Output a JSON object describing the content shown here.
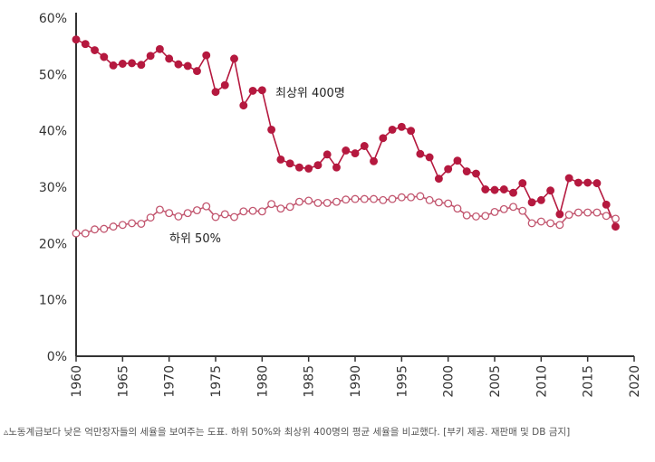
{
  "chart_data": {
    "type": "line",
    "title": "",
    "xlabel": "",
    "ylabel": "",
    "xlim": [
      1960,
      2020
    ],
    "ylim": [
      0,
      60
    ],
    "x_ticks": [
      "1960",
      "1965",
      "1970",
      "1975",
      "1980",
      "1985",
      "1990",
      "1995",
      "2000",
      "2005",
      "2010",
      "2015",
      "2020"
    ],
    "y_ticks": [
      "0%",
      "10%",
      "20%",
      "30%",
      "40%",
      "50%",
      "60%"
    ],
    "grid": false,
    "colors": {
      "top": "#b5193f",
      "bottom_fill": "#ffffff",
      "bottom_stroke": "#c2566f",
      "axis": "#333333"
    },
    "x": [
      1960,
      1961,
      1962,
      1963,
      1964,
      1965,
      1966,
      1967,
      1968,
      1969,
      1970,
      1971,
      1972,
      1973,
      1974,
      1975,
      1976,
      1977,
      1978,
      1979,
      1980,
      1981,
      1982,
      1983,
      1984,
      1985,
      1986,
      1987,
      1988,
      1989,
      1990,
      1991,
      1992,
      1993,
      1994,
      1995,
      1996,
      1997,
      1998,
      1999,
      2000,
      2001,
      2002,
      2003,
      2004,
      2005,
      2006,
      2007,
      2008,
      2009,
      2010,
      2011,
      2012,
      2013,
      2014,
      2015,
      2016,
      2017,
      2018
    ],
    "series": [
      {
        "name": "최상위 400명",
        "marker": "filled",
        "values": [
          56.2,
          55.4,
          54.3,
          53.1,
          51.6,
          51.9,
          52.0,
          51.7,
          53.3,
          54.5,
          52.8,
          51.8,
          51.5,
          50.6,
          53.4,
          46.9,
          48.1,
          52.8,
          44.5,
          47.1,
          47.2,
          40.2,
          34.9,
          34.2,
          33.5,
          33.3,
          33.9,
          35.8,
          33.5,
          36.5,
          36.0,
          37.3,
          34.6,
          38.7,
          40.2,
          40.7,
          40.0,
          35.9,
          35.3,
          31.5,
          33.2,
          34.7,
          32.8,
          32.4,
          29.6,
          29.5,
          29.6,
          29.0,
          30.7,
          27.3,
          27.7,
          29.4,
          25.2,
          31.6,
          30.8,
          30.8,
          30.7,
          26.9,
          23.0
        ]
      },
      {
        "name": "하위 50%",
        "marker": "open",
        "values": [
          21.8,
          21.8,
          22.5,
          22.6,
          23.0,
          23.3,
          23.6,
          23.5,
          24.6,
          26.0,
          25.4,
          24.8,
          25.4,
          25.9,
          26.6,
          24.7,
          25.2,
          24.7,
          25.7,
          25.8,
          25.7,
          27.0,
          26.2,
          26.5,
          27.4,
          27.6,
          27.2,
          27.2,
          27.4,
          27.8,
          27.9,
          27.9,
          27.9,
          27.7,
          27.9,
          28.2,
          28.2,
          28.4,
          27.7,
          27.3,
          27.1,
          26.2,
          25.0,
          24.8,
          24.9,
          25.6,
          26.1,
          26.5,
          25.8,
          23.6,
          23.9,
          23.6,
          23.3,
          25.1,
          25.5,
          25.5,
          25.5,
          24.9,
          24.4
        ]
      }
    ]
  },
  "caption": "▵노동계급보다 낮은 억만장자들의 세율을 보여주는 도표. 하위 50%와 최상위 400명의 평균 세율을 비교했다. [부키 제공. 재판매 및 DB 금지]"
}
